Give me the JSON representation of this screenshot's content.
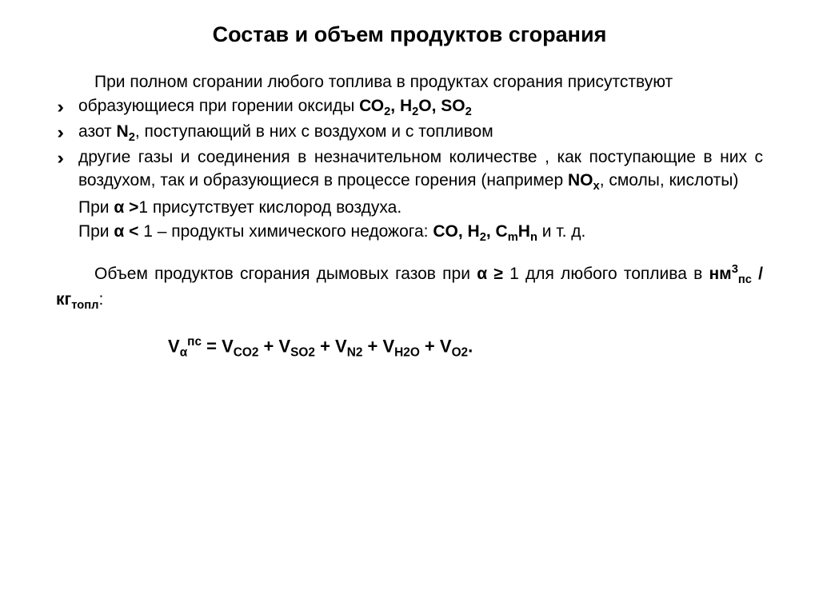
{
  "title": "Состав и объем продуктов сгорания",
  "intro": "При полном сгорании любого топлива в продуктах сгорания присутствуют",
  "bullets": {
    "b1_pre": "образующиеся при горении оксиды ",
    "b1_bold": "СО",
    "b1_bold2": ", H",
    "b1_bold3": "O, SO",
    "b2_pre": "азот ",
    "b2_bold": "N",
    "b2_post": ", поступающий в них с воздухом и с топливом",
    "b3_pre": "другие газы и соединения в незначительном количестве , как поступающие в них с воздухом, так и образующиеся в процессе горения (например ",
    "b3_bold": "NO",
    "b3_post": ", смолы, кислоты)"
  },
  "alpha1_pre": "При ",
  "alpha1_bold": "α >",
  "alpha1_post": "1 присутствует кислород воздуха.",
  "alpha2_pre": "При ",
  "alpha2_bold": "α <",
  "alpha2_mid": " 1 – продукты химического недожога: ",
  "alpha2_list": "CO, H",
  "alpha2_list2": ", C",
  "alpha2_list3": "H",
  "alpha2_end": " и т. д.",
  "vol_pre": "Объем продуктов сгорания дымовых газов при ",
  "vol_bold": "α ≥",
  "vol_mid": " 1 для любого топлива в ",
  "vol_unit": "нм",
  "vol_unit2": " / кг",
  "formula": {
    "lhs_v": "V",
    "lhs_sub": "α",
    "lhs_sup": "пс",
    "eq": " = V",
    "t1": "CO2",
    "plus": " + V",
    "t2": "SO2",
    "t3": "N2",
    "t4": "H2O",
    "t5": "O2",
    "dot": "."
  },
  "sub2": "2",
  "sub3": "3",
  "subx": "x",
  "subm": "m",
  "subn": "n",
  "sub_ps": "пс",
  "sub_topl": "топл",
  "colon": ":"
}
